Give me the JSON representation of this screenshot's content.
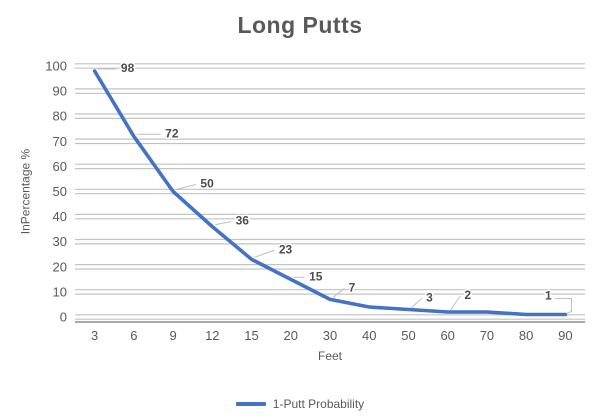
{
  "colors": {
    "line": "#4472C4",
    "text": "#595959",
    "gridline": "#C3C3C3",
    "axis": "#8C8C8C",
    "leader": "#BFBFBF"
  },
  "chart_data": {
    "type": "line",
    "title": "Long Putts",
    "xlabel": "Feet",
    "ylabel": "InPercentage %",
    "categories": [
      "3",
      "6",
      "9",
      "12",
      "15",
      "20",
      "30",
      "40",
      "50",
      "60",
      "70",
      "80",
      "90"
    ],
    "series": [
      {
        "name": "1-Putt Probability",
        "values": [
          98,
          72,
          50,
          36,
          23,
          15,
          7,
          4,
          3,
          2,
          2,
          1,
          1
        ]
      }
    ],
    "data_labels": [
      98,
      72,
      50,
      36,
      23,
      15,
      7,
      null,
      3,
      2,
      null,
      null,
      1
    ],
    "label_offsets": {
      "dx": [
        33,
        38,
        34,
        30,
        34,
        25,
        22,
        0,
        21,
        20,
        0,
        0,
        -17
      ],
      "dy": [
        -3,
        -3,
        -8,
        -6,
        -10,
        -3,
        -12,
        0,
        -12,
        -17,
        0,
        0,
        -19
      ]
    },
    "ylim": [
      0,
      100
    ],
    "ytick_step": 10,
    "grid": "horizontal-double",
    "legend_position": "bottom",
    "line_smooth": false
  }
}
